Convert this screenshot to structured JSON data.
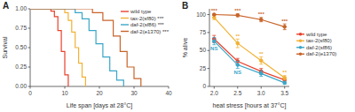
{
  "chart_data": [
    {
      "type": "step",
      "panel": "A",
      "x_label": "Life span [days at 28°C]",
      "y_label": "Survival",
      "xlim": [
        0,
        40
      ],
      "xticks": [
        0,
        10,
        20,
        30,
        40
      ],
      "ylim": [
        0,
        1
      ],
      "yticks": [
        {
          "value": 0,
          "label": "0.00"
        },
        {
          "value": 0.25,
          "label": "0.25"
        },
        {
          "value": 0.5,
          "label": "0.50"
        },
        {
          "value": 0.75,
          "label": "0.75"
        },
        {
          "value": 1,
          "label": "1.00"
        }
      ],
      "grid": false,
      "legend": "top-right",
      "series": [
        {
          "name": "wild type",
          "color": "#e8412c",
          "x": [
            0,
            5,
            6,
            7,
            8,
            9,
            10,
            11
          ],
          "values": [
            1,
            1,
            0.97,
            0.9,
            0.72,
            0.45,
            0.15,
            0
          ]
        },
        {
          "name": "tax-2(sf80) ***",
          "color": "#f2b134",
          "x": [
            0,
            8,
            10,
            11,
            12,
            13,
            14,
            15,
            16
          ],
          "values": [
            1,
            1,
            0.95,
            0.85,
            0.7,
            0.5,
            0.3,
            0.12,
            0
          ]
        },
        {
          "name": "daf-2(sf86) ***",
          "color": "#3aa6c8",
          "x": [
            0,
            10,
            13,
            15,
            17,
            19,
            21,
            23,
            25,
            27
          ],
          "values": [
            1,
            1,
            0.95,
            0.87,
            0.72,
            0.55,
            0.38,
            0.2,
            0.08,
            0
          ]
        },
        {
          "name": "daf-2(e1370) ***",
          "color": "#c8642a",
          "x": [
            0,
            14,
            18,
            21,
            24,
            26,
            28,
            30,
            32
          ],
          "values": [
            1,
            1,
            0.95,
            0.85,
            0.65,
            0.45,
            0.25,
            0.1,
            0
          ]
        }
      ]
    },
    {
      "type": "line",
      "panel": "B",
      "x_label": "heat stress [hours at 37°C]",
      "y_label": "% alive",
      "x": [
        2,
        2.5,
        3,
        3.5
      ],
      "xlim": [
        1.9,
        3.6
      ],
      "xticks": [
        {
          "value": 2,
          "label": "2.0"
        },
        2.5,
        {
          "value": 3,
          "label": "3.0"
        },
        3.5
      ],
      "ylim": [
        0,
        108
      ],
      "yticks": [
        0,
        25,
        50,
        75,
        100
      ],
      "grid": false,
      "legend": "right",
      "marker": "circle",
      "series": [
        {
          "name": "wild type",
          "color": "#e8412c",
          "values": [
            66,
            35,
            21,
            9
          ],
          "errors": [
            5,
            4,
            4,
            3
          ],
          "significance": [
            null,
            null,
            null,
            null
          ]
        },
        {
          "name": "tax-2(sf80)",
          "color": "#f2b134",
          "values": [
            96,
            60,
            36,
            12
          ],
          "errors": [
            3,
            6,
            5,
            3
          ],
          "significance": [
            null,
            "**",
            "**",
            "**"
          ]
        },
        {
          "name": "daf-2(sf86)",
          "color": "#3aa6c8",
          "values": [
            63,
            30,
            18,
            5
          ],
          "errors": [
            5,
            5,
            4,
            2
          ],
          "significance": [
            "NS",
            "NS",
            null,
            null
          ]
        },
        {
          "name": "daf-2(e1370)",
          "color": "#c8642a",
          "values": [
            100,
            99,
            93,
            83
          ],
          "errors": [
            1,
            2,
            3,
            4
          ],
          "significance": [
            "***",
            "***",
            "***",
            "***"
          ]
        }
      ]
    }
  ]
}
